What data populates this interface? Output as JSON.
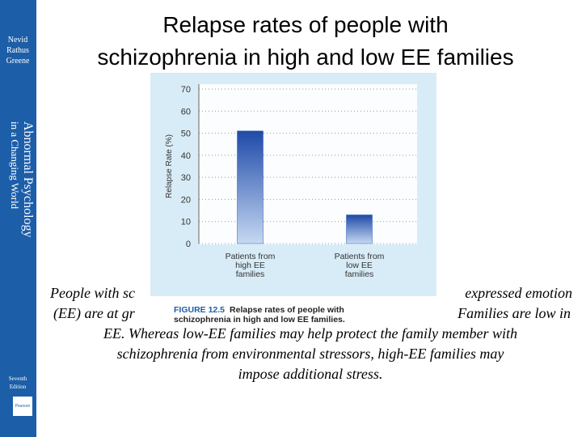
{
  "sidebar": {
    "authors": [
      "Nevid",
      "Rathus",
      "Greene"
    ],
    "book": [
      "Abnormal Psychology",
      "in a Changing World"
    ],
    "edition": [
      "Seventh",
      "Edition"
    ],
    "publisher": "Pearson"
  },
  "title": [
    "Relapse rates of people with",
    "schizophrenia in high and low EE families"
  ],
  "chart_data": {
    "type": "bar",
    "ylabel": "Relapse Rate (%)",
    "categories": [
      [
        "Patients from",
        "high EE",
        "families"
      ],
      [
        "Patients from",
        "low EE",
        "families"
      ]
    ],
    "values": [
      51,
      13
    ],
    "color": "#2a5ab8",
    "ylim": [
      0,
      70
    ],
    "yticks": [
      0,
      10,
      20,
      30,
      40,
      50,
      60,
      70
    ],
    "grid": true
  },
  "caption": {
    "label": "FIGURE 12.5",
    "lines": [
      "Relapse rates of people with",
      "schizophrenia in high and low EE families."
    ]
  },
  "paragraph": {
    "line1": [
      "People with sc",
      "expressed emotion"
    ],
    "line2": [
      "(EE) are at gr",
      "Families are low in"
    ],
    "rest": [
      "EE. Whereas low-EE families may help protect the family member with",
      "schizophrenia from environmental stressors, high-EE families may",
      "impose additional stress."
    ]
  }
}
